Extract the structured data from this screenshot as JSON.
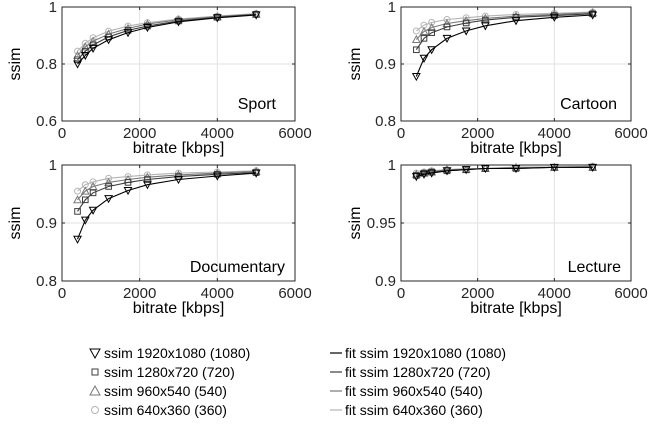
{
  "chart_data": [
    {
      "type": "line",
      "annotation": "Sport",
      "xlabel": "bitrate [kbps]",
      "ylabel": "ssim",
      "xlim": [
        0,
        6000
      ],
      "ylim": [
        0.6,
        1.0
      ],
      "xticks": [
        0,
        2000,
        4000,
        6000
      ],
      "yticks": [
        0.6,
        0.8,
        1
      ],
      "ytick_labels": [
        "0.6",
        "0.8",
        "1"
      ],
      "grid": true,
      "x": [
        400,
        600,
        800,
        1200,
        1700,
        2200,
        3000,
        4000,
        5000
      ],
      "series": [
        {
          "name": "ssim 1920x1080 (1080)",
          "values": [
            0.8,
            0.83,
            0.855,
            0.885,
            0.91,
            0.928,
            0.948,
            0.962,
            0.972
          ]
        },
        {
          "name": "ssim 1280x720 (720)",
          "values": [
            0.815,
            0.845,
            0.867,
            0.895,
            0.918,
            0.933,
            0.951,
            0.964,
            0.974
          ]
        },
        {
          "name": "ssim 960x540 (540)",
          "values": [
            0.83,
            0.86,
            0.88,
            0.905,
            0.925,
            0.94,
            0.955,
            0.966,
            0.975
          ]
        },
        {
          "name": "ssim 640x360 (360)",
          "values": [
            0.845,
            0.873,
            0.892,
            0.915,
            0.933,
            0.945,
            0.958,
            0.968,
            0.977
          ]
        }
      ]
    },
    {
      "type": "line",
      "annotation": "Cartoon",
      "xlabel": "bitrate [kbps]",
      "ylabel": "ssim",
      "xlim": [
        0,
        6000
      ],
      "ylim": [
        0.8,
        1.0
      ],
      "xticks": [
        0,
        2000,
        4000,
        6000
      ],
      "yticks": [
        0.8,
        0.9,
        1
      ],
      "ytick_labels": [
        "0.8",
        "0.9",
        "1"
      ],
      "grid": true,
      "x": [
        400,
        600,
        800,
        1200,
        1700,
        2200,
        3000,
        4000,
        5000
      ],
      "series": [
        {
          "name": "ssim 1920x1080 (1080)",
          "values": [
            0.878,
            0.91,
            0.925,
            0.945,
            0.958,
            0.967,
            0.976,
            0.982,
            0.986
          ]
        },
        {
          "name": "ssim 1280x720 (720)",
          "values": [
            0.925,
            0.945,
            0.955,
            0.965,
            0.972,
            0.977,
            0.982,
            0.985,
            0.988
          ]
        },
        {
          "name": "ssim 960x540 (540)",
          "values": [
            0.943,
            0.957,
            0.964,
            0.971,
            0.976,
            0.98,
            0.984,
            0.987,
            0.99
          ]
        },
        {
          "name": "ssim 640x360 (360)",
          "values": [
            0.958,
            0.968,
            0.973,
            0.978,
            0.981,
            0.984,
            0.987,
            0.989,
            0.991
          ]
        }
      ]
    },
    {
      "type": "line",
      "annotation": "Documentary",
      "xlabel": "bitrate [kbps]",
      "ylabel": "ssim",
      "xlim": [
        0,
        6000
      ],
      "ylim": [
        0.8,
        1.0
      ],
      "xticks": [
        0,
        2000,
        4000,
        6000
      ],
      "yticks": [
        0.8,
        0.9,
        1
      ],
      "ytick_labels": [
        "0.8",
        "0.9",
        "1"
      ],
      "grid": true,
      "x": [
        400,
        600,
        800,
        1200,
        1700,
        2200,
        3000,
        4000,
        5000
      ],
      "series": [
        {
          "name": "ssim 1920x1080 (1080)",
          "values": [
            0.872,
            0.905,
            0.922,
            0.942,
            0.956,
            0.966,
            0.975,
            0.981,
            0.986
          ]
        },
        {
          "name": "ssim 1280x720 (720)",
          "values": [
            0.92,
            0.94,
            0.952,
            0.963,
            0.97,
            0.975,
            0.98,
            0.984,
            0.987
          ]
        },
        {
          "name": "ssim 960x540 (540)",
          "values": [
            0.94,
            0.955,
            0.963,
            0.97,
            0.975,
            0.979,
            0.983,
            0.986,
            0.989
          ]
        },
        {
          "name": "ssim 640x360 (360)",
          "values": [
            0.955,
            0.966,
            0.971,
            0.977,
            0.98,
            0.983,
            0.986,
            0.988,
            0.99
          ]
        }
      ]
    },
    {
      "type": "line",
      "annotation": "Lecture",
      "xlabel": "bitrate [kbps]",
      "ylabel": "ssim",
      "xlim": [
        0,
        6000
      ],
      "ylim": [
        0.9,
        1.0
      ],
      "xticks": [
        0,
        2000,
        4000,
        6000
      ],
      "yticks": [
        0.9,
        0.95,
        1
      ],
      "ytick_labels": [
        "0.9",
        "0.95",
        "1"
      ],
      "grid": true,
      "x": [
        400,
        600,
        800,
        1200,
        1700,
        2200,
        3000,
        4000,
        5000
      ],
      "series": [
        {
          "name": "ssim 1920x1080 (1080)",
          "values": [
            0.99,
            0.992,
            0.993,
            0.995,
            0.996,
            0.997,
            0.997,
            0.998,
            0.998
          ]
        },
        {
          "name": "ssim 1280x720 (720)",
          "values": [
            0.991,
            0.993,
            0.994,
            0.995,
            0.996,
            0.997,
            0.997,
            0.998,
            0.998
          ]
        },
        {
          "name": "ssim 960x540 (540)",
          "values": [
            0.992,
            0.993,
            0.994,
            0.996,
            0.996,
            0.997,
            0.998,
            0.998,
            0.998
          ]
        },
        {
          "name": "ssim 640x360 (360)",
          "values": [
            0.993,
            0.994,
            0.995,
            0.996,
            0.997,
            0.997,
            0.998,
            0.998,
            0.999
          ]
        }
      ]
    }
  ],
  "legend": {
    "markers": [
      {
        "label": "ssim 1920x1080 (1080)",
        "marker": "triangle-down",
        "color": "#000000"
      },
      {
        "label": "ssim 1280x720 (720)",
        "marker": "square",
        "color": "#3c3c3c"
      },
      {
        "label": "ssim 960x540 (540)",
        "marker": "triangle-up",
        "color": "#787878"
      },
      {
        "label": "ssim 640x360 (360)",
        "marker": "circle",
        "color": "#b4b4b4"
      }
    ],
    "fits": [
      {
        "label": "fit ssim 1920x1080 (1080)",
        "color": "#000000"
      },
      {
        "label": "fit ssim 1280x720 (720)",
        "color": "#3c3c3c"
      },
      {
        "label": "fit ssim 960x540 (540)",
        "color": "#787878"
      },
      {
        "label": "fit ssim 640x360 (360)",
        "color": "#b4b4b4"
      }
    ]
  }
}
